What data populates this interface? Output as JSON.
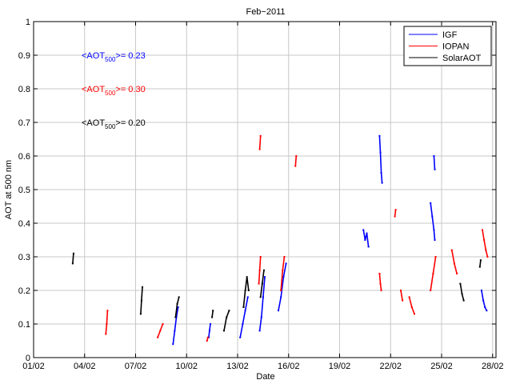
{
  "chart_data": {
    "type": "scatter",
    "title": "Feb−2011",
    "xlabel": "Date",
    "ylabel": "AOT at 500 nm",
    "x_unit": "day of February 2011",
    "xlim": [
      1,
      28.2
    ],
    "ylim": [
      0,
      1
    ],
    "grid": true,
    "legend_position": "top-right",
    "x_ticks": [
      {
        "value": 1,
        "label": "01/02"
      },
      {
        "value": 4,
        "label": "04/02"
      },
      {
        "value": 7,
        "label": "07/02"
      },
      {
        "value": 10,
        "label": "10/02"
      },
      {
        "value": 13,
        "label": "13/02"
      },
      {
        "value": 16,
        "label": "16/02"
      },
      {
        "value": 19,
        "label": "19/02"
      },
      {
        "value": 22,
        "label": "22/02"
      },
      {
        "value": 25,
        "label": "25/02"
      },
      {
        "value": 28,
        "label": "28/02"
      }
    ],
    "y_ticks": [
      {
        "value": 0,
        "label": "0"
      },
      {
        "value": 0.1,
        "label": "0.1"
      },
      {
        "value": 0.2,
        "label": "0.2"
      },
      {
        "value": 0.3,
        "label": "0.3"
      },
      {
        "value": 0.4,
        "label": "0.4"
      },
      {
        "value": 0.5,
        "label": "0.5"
      },
      {
        "value": 0.6,
        "label": "0.6"
      },
      {
        "value": 0.7,
        "label": "0.7"
      },
      {
        "value": 0.8,
        "label": "0.8"
      },
      {
        "value": 0.9,
        "label": "0.9"
      },
      {
        "value": 1,
        "label": "1"
      }
    ],
    "annotations": [
      {
        "prefix": "<AOT",
        "sub": "500",
        "suffix": ">= 0.23",
        "color": "#0000ff",
        "y": 0.9
      },
      {
        "prefix": "<AOT",
        "sub": "500",
        "suffix": ">= 0.30",
        "color": "#ff0000",
        "y": 0.8
      },
      {
        "prefix": "<AOT",
        "sub": "500",
        "suffix": ">= 0.20",
        "color": "#000000",
        "y": 0.7
      }
    ],
    "series": [
      {
        "name": "IGF",
        "color": "#0000ff",
        "segments": [
          {
            "x": [
              9.2,
              9.3,
              9.4,
              9.5
            ],
            "y": [
              0.04,
              0.08,
              0.12,
              0.15
            ]
          },
          {
            "x": [
              11.3,
              11.35,
              11.4
            ],
            "y": [
              0.06,
              0.08,
              0.1
            ]
          },
          {
            "x": [
              13.15,
              13.3,
              13.45,
              13.6
            ],
            "y": [
              0.06,
              0.1,
              0.14,
              0.18
            ]
          },
          {
            "x": [
              14.3,
              14.4,
              14.5,
              14.6
            ],
            "y": [
              0.08,
              0.12,
              0.18,
              0.24
            ]
          },
          {
            "x": [
              15.4,
              15.55,
              15.7,
              15.85
            ],
            "y": [
              0.14,
              0.18,
              0.24,
              0.28
            ]
          },
          {
            "x": [
              20.4,
              20.5,
              20.6,
              20.7
            ],
            "y": [
              0.38,
              0.35,
              0.37,
              0.33
            ]
          },
          {
            "x": [
              21.35,
              21.4,
              21.45,
              21.5
            ],
            "y": [
              0.66,
              0.61,
              0.55,
              0.52
            ]
          },
          {
            "x": [
              24.35,
              24.45,
              24.55,
              24.6
            ],
            "y": [
              0.46,
              0.42,
              0.38,
              0.35
            ]
          },
          {
            "x": [
              24.55,
              24.6
            ],
            "y": [
              0.6,
              0.56
            ]
          },
          {
            "x": [
              27.35,
              27.45,
              27.55,
              27.65
            ],
            "y": [
              0.2,
              0.17,
              0.15,
              0.14
            ]
          }
        ]
      },
      {
        "name": "IOPAN",
        "color": "#ff0000",
        "segments": [
          {
            "x": [
              5.25,
              5.3,
              5.35
            ],
            "y": [
              0.07,
              0.1,
              0.14
            ]
          },
          {
            "x": [
              8.3,
              8.45,
              8.6
            ],
            "y": [
              0.06,
              0.08,
              0.1
            ]
          },
          {
            "x": [
              11.2,
              11.25
            ],
            "y": [
              0.05,
              0.06
            ]
          },
          {
            "x": [
              14.25,
              14.3,
              14.35
            ],
            "y": [
              0.22,
              0.26,
              0.3
            ]
          },
          {
            "x": [
              14.3,
              14.35
            ],
            "y": [
              0.62,
              0.66
            ]
          },
          {
            "x": [
              15.55,
              15.65,
              15.75
            ],
            "y": [
              0.2,
              0.26,
              0.3
            ]
          },
          {
            "x": [
              16.4,
              16.45
            ],
            "y": [
              0.57,
              0.6
            ]
          },
          {
            "x": [
              21.35,
              21.4,
              21.45
            ],
            "y": [
              0.25,
              0.22,
              0.2
            ]
          },
          {
            "x": [
              22.25,
              22.3
            ],
            "y": [
              0.42,
              0.44
            ]
          },
          {
            "x": [
              22.6,
              22.7
            ],
            "y": [
              0.2,
              0.17
            ]
          },
          {
            "x": [
              23.1,
              23.25,
              23.4
            ],
            "y": [
              0.18,
              0.15,
              0.13
            ]
          },
          {
            "x": [
              24.35,
              24.5,
              24.65
            ],
            "y": [
              0.2,
              0.25,
              0.3
            ]
          },
          {
            "x": [
              25.6,
              25.75,
              25.9
            ],
            "y": [
              0.32,
              0.28,
              0.25
            ]
          },
          {
            "x": [
              27.4,
              27.5,
              27.6,
              27.7
            ],
            "y": [
              0.38,
              0.35,
              0.32,
              0.3
            ]
          }
        ]
      },
      {
        "name": "SolarAOT",
        "color": "#000000",
        "segments": [
          {
            "x": [
              3.3,
              3.35
            ],
            "y": [
              0.28,
              0.31
            ]
          },
          {
            "x": [
              7.3,
              7.35,
              7.4
            ],
            "y": [
              0.13,
              0.17,
              0.21
            ]
          },
          {
            "x": [
              9.35,
              9.45,
              9.55
            ],
            "y": [
              0.12,
              0.16,
              0.18
            ]
          },
          {
            "x": [
              11.5,
              11.55
            ],
            "y": [
              0.12,
              0.14
            ]
          },
          {
            "x": [
              12.2,
              12.35,
              12.5
            ],
            "y": [
              0.08,
              0.12,
              0.14
            ]
          },
          {
            "x": [
              13.35,
              13.45,
              13.55,
              13.65
            ],
            "y": [
              0.15,
              0.2,
              0.24,
              0.2
            ]
          },
          {
            "x": [
              14.35,
              14.45,
              14.55
            ],
            "y": [
              0.18,
              0.22,
              0.26
            ]
          },
          {
            "x": [
              26.1,
              26.2,
              26.3
            ],
            "y": [
              0.22,
              0.19,
              0.17
            ]
          },
          {
            "x": [
              27.25,
              27.3
            ],
            "y": [
              0.27,
              0.29
            ]
          }
        ]
      }
    ]
  }
}
